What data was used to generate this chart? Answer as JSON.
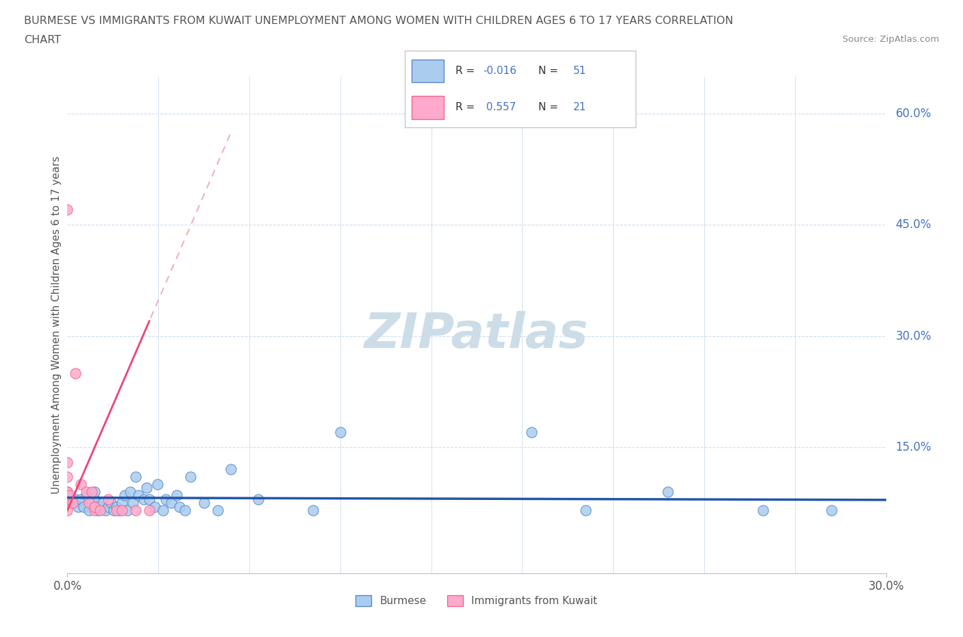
{
  "title_line1": "BURMESE VS IMMIGRANTS FROM KUWAIT UNEMPLOYMENT AMONG WOMEN WITH CHILDREN AGES 6 TO 17 YEARS CORRELATION",
  "title_line2": "CHART",
  "source": "Source: ZipAtlas.com",
  "xmin": 0.0,
  "xmax": 0.3,
  "ymin": -0.02,
  "ymax": 0.65,
  "ylabel": "Unemployment Among Women with Children Ages 6 to 17 years",
  "burmese_marker_color": "#aaccee",
  "burmese_edge_color": "#5588cc",
  "kuwait_marker_color": "#ffaacc",
  "kuwait_edge_color": "#ee6688",
  "burmese_line_color": "#2255aa",
  "kuwait_line_color": "#ee4477",
  "kuwait_dashed_color": "#f0b0c0",
  "legend_box_color": "#aaaaaa",
  "grid_color": "#ccddee",
  "axis_label_color": "#555555",
  "right_tick_color": "#4472c4",
  "source_color": "#888888",
  "title_color": "#555555",
  "background_color": "#ffffff",
  "watermark": "ZIPatlas",
  "watermark_color": "#ccdde8",
  "burmese_scatter_x": [
    0.0,
    0.0,
    0.002,
    0.003,
    0.004,
    0.005,
    0.006,
    0.007,
    0.008,
    0.009,
    0.01,
    0.01,
    0.011,
    0.012,
    0.013,
    0.014,
    0.015,
    0.016,
    0.017,
    0.018,
    0.019,
    0.02,
    0.021,
    0.022,
    0.023,
    0.024,
    0.025,
    0.026,
    0.028,
    0.029,
    0.03,
    0.032,
    0.033,
    0.035,
    0.036,
    0.038,
    0.04,
    0.041,
    0.043,
    0.045,
    0.05,
    0.055,
    0.06,
    0.07,
    0.09,
    0.1,
    0.17,
    0.19,
    0.22,
    0.255,
    0.28
  ],
  "burmese_scatter_y": [
    0.075,
    0.09,
    0.075,
    0.08,
    0.07,
    0.08,
    0.07,
    0.085,
    0.065,
    0.075,
    0.08,
    0.09,
    0.065,
    0.07,
    0.075,
    0.065,
    0.07,
    0.075,
    0.065,
    0.07,
    0.065,
    0.075,
    0.085,
    0.065,
    0.09,
    0.075,
    0.11,
    0.085,
    0.08,
    0.095,
    0.08,
    0.07,
    0.1,
    0.065,
    0.08,
    0.075,
    0.085,
    0.07,
    0.065,
    0.11,
    0.075,
    0.065,
    0.12,
    0.08,
    0.065,
    0.17,
    0.17,
    0.065,
    0.09,
    0.065,
    0.065
  ],
  "kuwait_scatter_x": [
    0.0,
    0.0,
    0.0,
    0.0,
    0.0,
    0.0,
    0.001,
    0.002,
    0.003,
    0.005,
    0.007,
    0.008,
    0.009,
    0.01,
    0.01,
    0.012,
    0.015,
    0.018,
    0.02,
    0.025,
    0.03
  ],
  "kuwait_scatter_y": [
    0.47,
    0.13,
    0.11,
    0.09,
    0.075,
    0.065,
    0.085,
    0.075,
    0.25,
    0.1,
    0.09,
    0.075,
    0.09,
    0.065,
    0.07,
    0.065,
    0.08,
    0.065,
    0.065,
    0.065,
    0.065
  ],
  "burmese_trendline_slope": -0.01,
  "burmese_trendline_intercept": 0.082,
  "kuwait_trendline_slope": 8.5,
  "kuwait_trendline_intercept": 0.065
}
